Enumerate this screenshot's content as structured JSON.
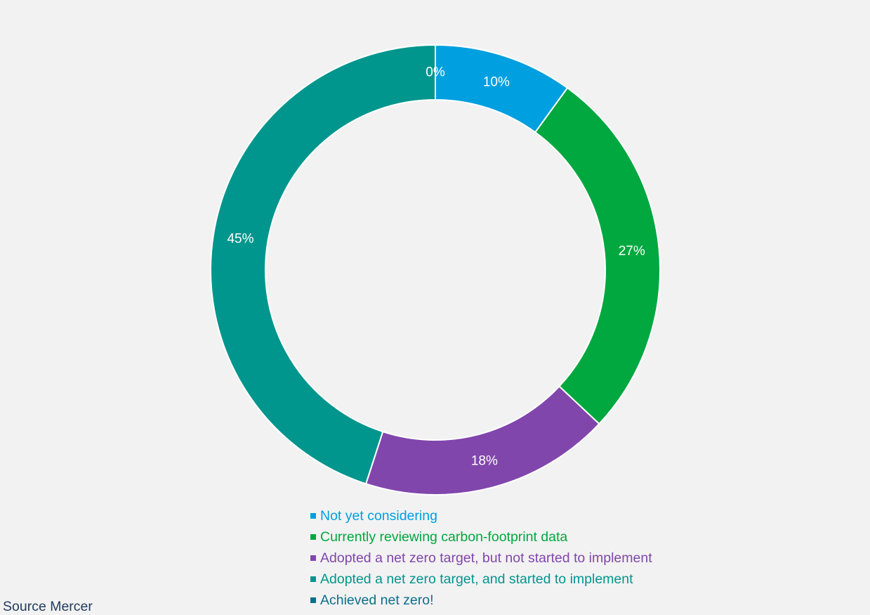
{
  "chart_data": {
    "type": "pie",
    "donut": true,
    "categories": [
      "Achieved net zero!",
      "Not yet considering",
      "Currently reviewing carbon-footprint data",
      "Adopted a net zero target, but not started to implement",
      "Adopted a net zero target, and started to implement"
    ],
    "values": [
      0,
      10,
      27,
      18,
      45
    ],
    "data_labels": [
      "0%",
      "10%",
      "27%",
      "18%",
      "45%"
    ],
    "colors": [
      "#0b6e8c",
      "#009fe0",
      "#00a83f",
      "#8146ac",
      "#00968d"
    ],
    "legend": {
      "placement": "bottom",
      "items": [
        {
          "label": "Not yet considering",
          "color": "#009fe0"
        },
        {
          "label": "Currently reviewing carbon-footprint data",
          "color": "#00a83f"
        },
        {
          "label": "Adopted a net zero target, but not started to implement",
          "color": "#8146ac"
        },
        {
          "label": "Adopted a net zero target, and started to implement",
          "color": "#00968d"
        },
        {
          "label": "Achieved net zero!",
          "color": "#0b6e8c"
        }
      ]
    }
  },
  "source": "Source Mercer"
}
